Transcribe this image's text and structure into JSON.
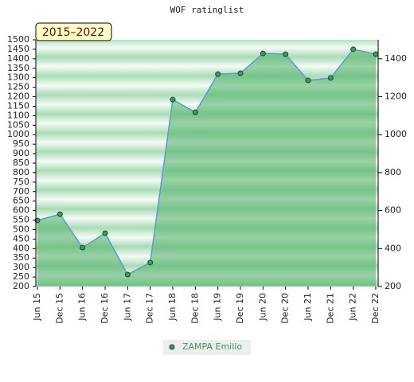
{
  "chart_data": {
    "type": "area",
    "title": "WOF ratinglist",
    "annotation": "2015–2022",
    "categories": [
      "Jun 15",
      "Dec 15",
      "Jun 16",
      "Dec 16",
      "Jun 17",
      "Dec 17",
      "Jun 18",
      "Dec 18",
      "Jun 19",
      "Dec 19",
      "Jun 20",
      "Dec 20",
      "Jun 21",
      "Dec 21",
      "Jun 22",
      "Dec 22"
    ],
    "series": [
      {
        "name": "ZAMPA Emilio",
        "color": "#5b9bd5",
        "fill_color": "#4cae66",
        "marker_color": "#3d9a5a",
        "values": [
          548,
          581,
          405,
          481,
          263,
          326,
          1185,
          1118,
          1319,
          1324,
          1428,
          1424,
          1286,
          1299,
          1450,
          1424
        ]
      }
    ],
    "ylim": [
      200,
      1500
    ],
    "yticks": [
      200,
      250,
      300,
      350,
      400,
      450,
      500,
      550,
      600,
      650,
      700,
      750,
      800,
      850,
      900,
      950,
      1000,
      1050,
      1100,
      1150,
      1200,
      1250,
      1300,
      1350,
      1400,
      1450,
      1500
    ],
    "y2lim": [
      200,
      1500
    ],
    "y2ticks": [
      200,
      400,
      600,
      800,
      1000,
      1200,
      1400
    ]
  }
}
